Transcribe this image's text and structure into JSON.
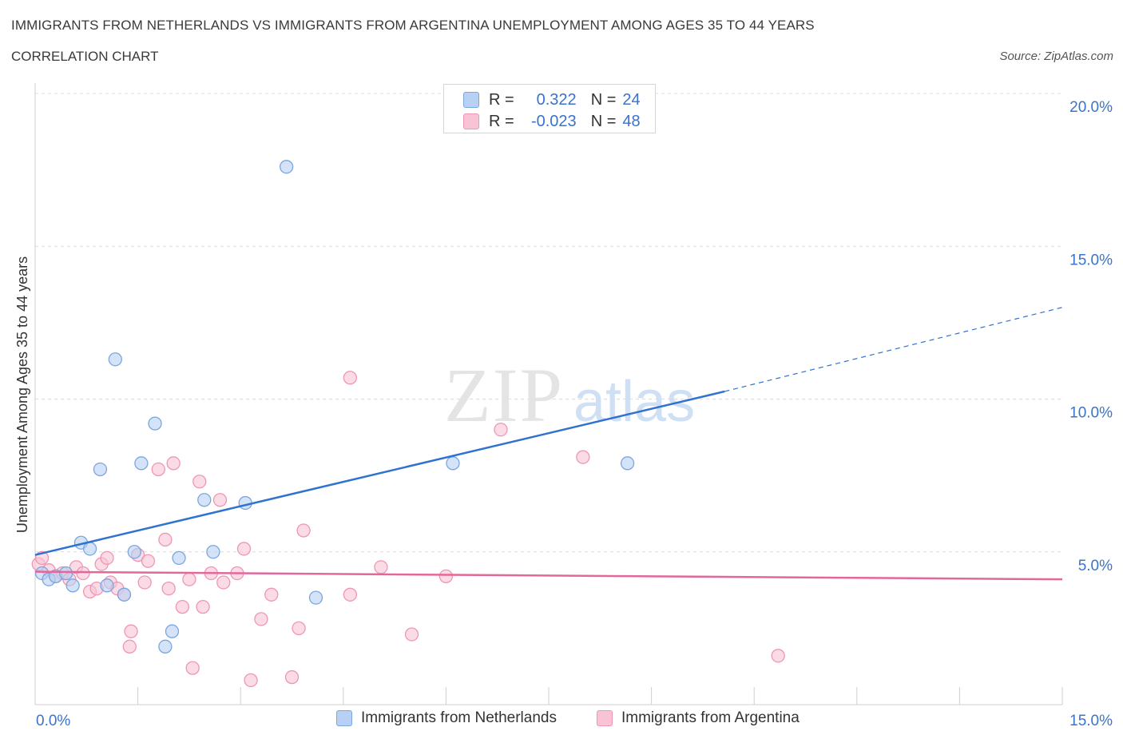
{
  "title": "IMMIGRANTS FROM NETHERLANDS VS IMMIGRANTS FROM ARGENTINA UNEMPLOYMENT AMONG AGES 35 TO 44 YEARS",
  "subtitle": "CORRELATION CHART",
  "source": "Source: ZipAtlas.com",
  "watermark": {
    "zip": "ZIP",
    "atlas": "atlas"
  },
  "stats": {
    "r_label": "R =",
    "n_label": "N =",
    "netherlands": {
      "r": "0.322",
      "n": "24"
    },
    "argentina": {
      "r": "-0.023",
      "n": "48"
    }
  },
  "colors": {
    "netherlands_fill": "#b8d0f3",
    "netherlands_stroke": "#7aa6e0",
    "netherlands_line": "#2f72cf",
    "argentina_fill": "#f8c4d5",
    "argentina_stroke": "#ee96b3",
    "argentina_line": "#e2689a",
    "axis_label": "#3a73c9",
    "grid": "#dcdcdc"
  },
  "chart_data": {
    "type": "scatter",
    "xlabel": "",
    "ylabel": "Unemployment Among Ages 35 to 44 years",
    "xlim": [
      0,
      15
    ],
    "ylim": [
      0,
      20
    ],
    "x_ticks_labels": [
      "0.0%",
      "15.0%"
    ],
    "y_ticks": [
      5,
      10,
      15,
      20
    ],
    "y_tick_labels": [
      "5.0%",
      "10.0%",
      "15.0%",
      "20.0%"
    ],
    "grid": true,
    "legend": "bottom",
    "series": [
      {
        "name": "Immigrants from Netherlands",
        "points": [
          [
            0.1,
            4.3
          ],
          [
            0.2,
            4.1
          ],
          [
            0.3,
            4.2
          ],
          [
            0.45,
            4.3
          ],
          [
            0.55,
            3.9
          ],
          [
            0.67,
            5.3
          ],
          [
            0.8,
            5.1
          ],
          [
            0.95,
            7.7
          ],
          [
            1.05,
            3.9
          ],
          [
            1.17,
            11.3
          ],
          [
            1.3,
            3.6
          ],
          [
            1.45,
            5.0
          ],
          [
            1.55,
            7.9
          ],
          [
            1.75,
            9.2
          ],
          [
            1.9,
            1.9
          ],
          [
            2.0,
            2.4
          ],
          [
            2.1,
            4.8
          ],
          [
            2.47,
            6.7
          ],
          [
            2.6,
            5.0
          ],
          [
            3.07,
            6.6
          ],
          [
            3.67,
            17.6
          ],
          [
            4.1,
            3.5
          ],
          [
            6.1,
            7.9
          ],
          [
            8.65,
            7.9
          ]
        ],
        "trend": {
          "x": [
            0,
            10.07
          ],
          "y": [
            4.9,
            10.25
          ],
          "dashed_to": [
            15,
            13.0
          ]
        }
      },
      {
        "name": "Immigrants from Argentina",
        "points": [
          [
            0.05,
            4.6
          ],
          [
            0.1,
            4.8
          ],
          [
            0.2,
            4.4
          ],
          [
            0.3,
            4.2
          ],
          [
            0.4,
            4.3
          ],
          [
            0.5,
            4.1
          ],
          [
            0.6,
            4.5
          ],
          [
            0.7,
            4.3
          ],
          [
            0.8,
            3.7
          ],
          [
            0.9,
            3.8
          ],
          [
            0.97,
            4.6
          ],
          [
            1.05,
            4.8
          ],
          [
            1.1,
            4.0
          ],
          [
            1.2,
            3.8
          ],
          [
            1.3,
            3.6
          ],
          [
            1.38,
            1.9
          ],
          [
            1.4,
            2.4
          ],
          [
            1.5,
            4.9
          ],
          [
            1.6,
            4.0
          ],
          [
            1.65,
            4.7
          ],
          [
            1.8,
            7.7
          ],
          [
            1.9,
            5.4
          ],
          [
            1.95,
            3.8
          ],
          [
            2.02,
            7.9
          ],
          [
            2.15,
            3.2
          ],
          [
            2.25,
            4.1
          ],
          [
            2.3,
            1.2
          ],
          [
            2.4,
            7.3
          ],
          [
            2.45,
            3.2
          ],
          [
            2.57,
            4.3
          ],
          [
            2.7,
            6.7
          ],
          [
            2.75,
            4.0
          ],
          [
            2.95,
            4.3
          ],
          [
            3.05,
            5.1
          ],
          [
            3.15,
            0.8
          ],
          [
            3.3,
            2.8
          ],
          [
            3.45,
            3.6
          ],
          [
            3.75,
            0.9
          ],
          [
            3.85,
            2.5
          ],
          [
            3.92,
            5.7
          ],
          [
            4.6,
            3.6
          ],
          [
            4.6,
            10.7
          ],
          [
            5.05,
            4.5
          ],
          [
            5.5,
            2.3
          ],
          [
            6.0,
            4.2
          ],
          [
            6.8,
            9.0
          ],
          [
            8.0,
            8.1
          ],
          [
            10.85,
            1.6
          ]
        ],
        "trend": {
          "x": [
            0,
            15
          ],
          "y": [
            4.35,
            4.1
          ]
        }
      }
    ]
  }
}
